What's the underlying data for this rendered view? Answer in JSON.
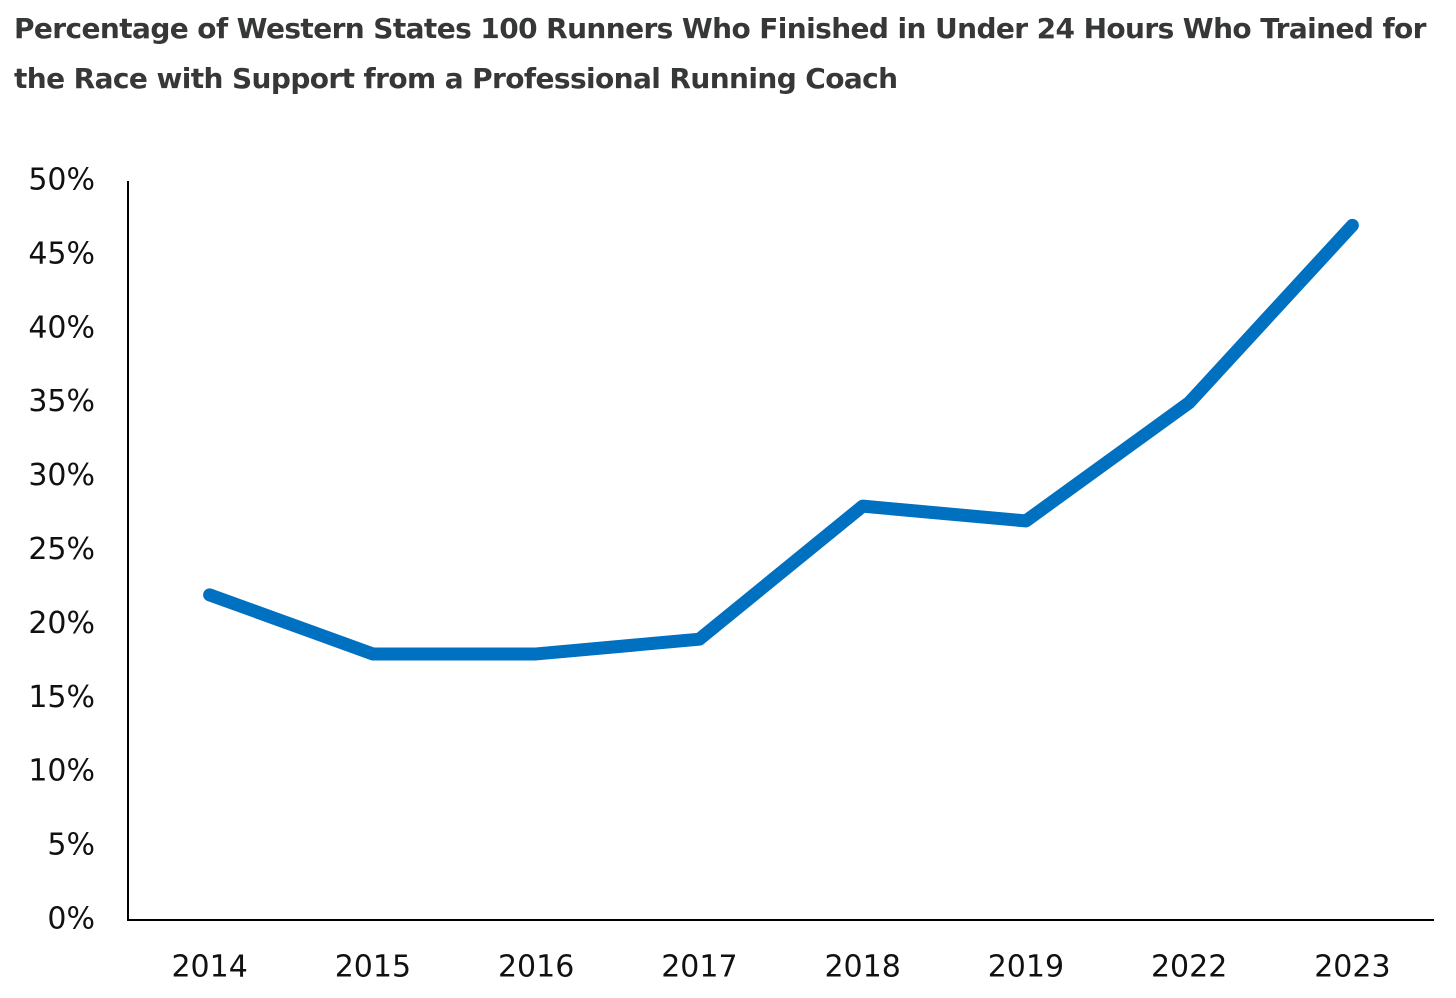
{
  "chart_data": {
    "type": "line",
    "title": "Percentage of Western States 100 Runners Who Finished in Under 24 Hours Who Trained for the Race with Support from a Professional Running Coach",
    "categories": [
      "2014",
      "2015",
      "2016",
      "2017",
      "2018",
      "2019",
      "2022",
      "2023"
    ],
    "values": [
      22,
      18,
      18,
      19,
      28,
      27,
      35,
      47
    ],
    "color": "#0070c0",
    "ylim": [
      0,
      50
    ],
    "yticks": [
      {
        "value": 0,
        "label": "0%"
      },
      {
        "value": 5,
        "label": "5%"
      },
      {
        "value": 10,
        "label": "10%"
      },
      {
        "value": 15,
        "label": "15%"
      },
      {
        "value": 20,
        "label": "20%"
      },
      {
        "value": 25,
        "label": "25%"
      },
      {
        "value": 30,
        "label": "30%"
      },
      {
        "value": 35,
        "label": "35%"
      },
      {
        "value": 40,
        "label": "40%"
      },
      {
        "value": 45,
        "label": "45%"
      },
      {
        "value": 50,
        "label": "50%"
      }
    ]
  }
}
